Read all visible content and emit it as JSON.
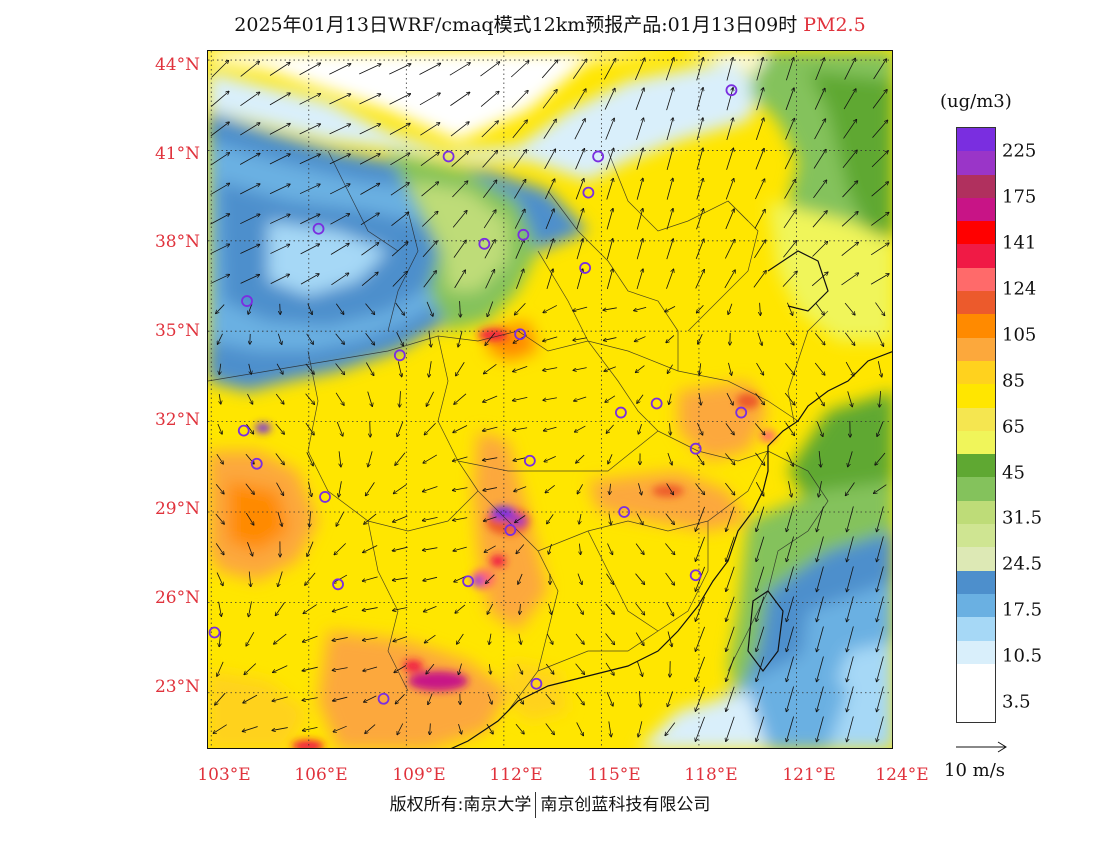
{
  "title": {
    "main": "2025年01月13日WRF/cmaq模式12km预报产品:01月13日09时",
    "pollutant": "PM2.5",
    "pollutant_color": "#e0323c"
  },
  "map": {
    "lat_ticks": [
      {
        "label": "44°N",
        "value": 44
      },
      {
        "label": "41°N",
        "value": 41
      },
      {
        "label": "38°N",
        "value": 38
      },
      {
        "label": "35°N",
        "value": 35
      },
      {
        "label": "32°N",
        "value": 32
      },
      {
        "label": "29°N",
        "value": 29
      },
      {
        "label": "26°N",
        "value": 26
      },
      {
        "label": "23°N",
        "value": 23
      }
    ],
    "lon_ticks": [
      {
        "label": "103°E",
        "value": 103
      },
      {
        "label": "106°E",
        "value": 106
      },
      {
        "label": "109°E",
        "value": 109
      },
      {
        "label": "112°E",
        "value": 112
      },
      {
        "label": "115°E",
        "value": 115
      },
      {
        "label": "118°E",
        "value": 118
      },
      {
        "label": "121°E",
        "value": 121
      },
      {
        "label": "124°E",
        "value": 124
      }
    ],
    "lon_range": [
      102.9,
      124
    ],
    "lat_range": [
      21.1,
      44.3
    ],
    "tick_color": "#e0323c"
  },
  "colorbar": {
    "unit": "(ug/m3)",
    "colors": [
      "#7a2ee0",
      "#9a35c8",
      "#b0305e",
      "#c81486",
      "#ff0000",
      "#f01a45",
      "#ff6a6a",
      "#ec5a2c",
      "#ff8a00",
      "#fca83c",
      "#ffd21e",
      "#ffe600",
      "#f5e650",
      "#f0f55a",
      "#5fa832",
      "#84c25c",
      "#bedc78",
      "#cfe592",
      "#dde9b5",
      "#4d8fcc",
      "#6ab0e2",
      "#a6d8f6",
      "#d9effb",
      "#ffffff"
    ],
    "labels": [
      "225",
      "175",
      "141",
      "124",
      "105",
      "85",
      "65",
      "45",
      "31.5",
      "24.5",
      "17.5",
      "10.5",
      "3.5"
    ]
  },
  "wind_reference": {
    "label": "10 m/s"
  },
  "cities": [
    {
      "lon": 119.0,
      "lat": 43.0
    },
    {
      "lon": 110.3,
      "lat": 40.8
    },
    {
      "lon": 114.9,
      "lat": 40.8
    },
    {
      "lon": 114.6,
      "lat": 39.6
    },
    {
      "lon": 106.3,
      "lat": 38.4
    },
    {
      "lon": 111.4,
      "lat": 37.9
    },
    {
      "lon": 112.6,
      "lat": 38.2
    },
    {
      "lon": 114.5,
      "lat": 37.1
    },
    {
      "lon": 104.1,
      "lat": 36.0
    },
    {
      "lon": 112.5,
      "lat": 34.9
    },
    {
      "lon": 108.8,
      "lat": 34.2
    },
    {
      "lon": 115.6,
      "lat": 32.3
    },
    {
      "lon": 116.7,
      "lat": 32.6
    },
    {
      "lon": 119.3,
      "lat": 32.3
    },
    {
      "lon": 117.9,
      "lat": 31.1
    },
    {
      "lon": 104.0,
      "lat": 31.7
    },
    {
      "lon": 104.4,
      "lat": 30.6
    },
    {
      "lon": 106.5,
      "lat": 29.5
    },
    {
      "lon": 112.8,
      "lat": 30.7
    },
    {
      "lon": 115.7,
      "lat": 29.0
    },
    {
      "lon": 112.2,
      "lat": 28.4
    },
    {
      "lon": 106.9,
      "lat": 26.6
    },
    {
      "lon": 110.9,
      "lat": 26.7
    },
    {
      "lon": 117.9,
      "lat": 26.9
    },
    {
      "lon": 103.1,
      "lat": 25.0
    },
    {
      "lon": 108.3,
      "lat": 22.8
    },
    {
      "lon": 113.0,
      "lat": 23.3
    }
  ],
  "copyright": {
    "left": "版权所有:南京大学",
    "right": "南京创蓝科技有限公司"
  }
}
